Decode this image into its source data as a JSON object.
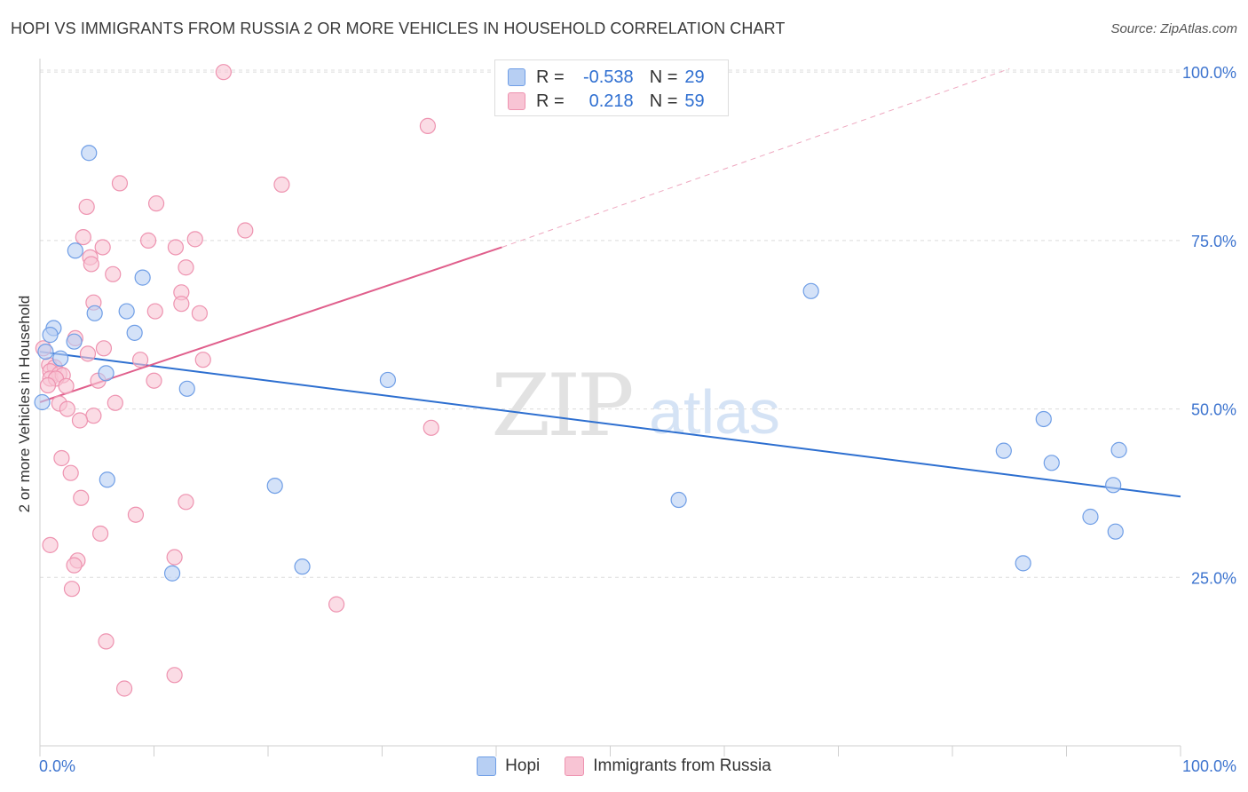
{
  "title": "HOPI VS IMMIGRANTS FROM RUSSIA 2 OR MORE VEHICLES IN HOUSEHOLD CORRELATION CHART",
  "source": "Source: ZipAtlas.com",
  "watermark": {
    "zip": "ZIP",
    "atlas": "atlas"
  },
  "legend_top": {
    "r_label": "R =",
    "n_label": "N =",
    "series": [
      {
        "name": "Hopi",
        "r": "-0.538",
        "n": "29"
      },
      {
        "name": "Immigrants from Russia",
        "r": "0.218",
        "n": "59"
      }
    ]
  },
  "colors": {
    "hopi_fill": "#b7cff3",
    "hopi_stroke": "#6f9ee6",
    "hopi_line": "#2d6fd0",
    "russia_fill": "#f8c4d4",
    "russia_stroke": "#ee93b0",
    "russia_line": "#e05f8c",
    "axis_text": "#3d74cf"
  },
  "chart_data": {
    "type": "scatter",
    "title": "HOPI VS IMMIGRANTS FROM RUSSIA 2 OR MORE VEHICLES IN HOUSEHOLD CORRELATION CHART",
    "xlabel": "",
    "ylabel": "2 or more Vehicles in Household",
    "xlim": [
      0,
      100
    ],
    "ylim": [
      0,
      102
    ],
    "x_tick_labels": [
      "0.0%",
      "100.0%"
    ],
    "y_ticks": [
      25,
      50,
      75,
      100
    ],
    "y_tick_labels": [
      "25.0%",
      "50.0%",
      "75.0%",
      "100.0%"
    ],
    "grid": true,
    "series": [
      {
        "name": "Hopi",
        "r": -0.538,
        "n": 29,
        "trend": {
          "x0": 0,
          "y0": 58.5,
          "x1": 100,
          "y1": 37.0
        },
        "points": [
          [
            4.3,
            88.0
          ],
          [
            3.1,
            73.5
          ],
          [
            9.0,
            69.5
          ],
          [
            1.2,
            62.0
          ],
          [
            0.9,
            61.0
          ],
          [
            7.6,
            64.5
          ],
          [
            4.8,
            64.2
          ],
          [
            8.3,
            61.3
          ],
          [
            3.0,
            60.0
          ],
          [
            1.8,
            57.5
          ],
          [
            0.5,
            58.5
          ],
          [
            5.8,
            55.3
          ],
          [
            0.2,
            51.0
          ],
          [
            12.9,
            53.0
          ],
          [
            30.5,
            54.3
          ],
          [
            5.9,
            39.5
          ],
          [
            20.6,
            38.6
          ],
          [
            11.6,
            25.6
          ],
          [
            23.0,
            26.6
          ],
          [
            67.6,
            67.5
          ],
          [
            88.0,
            48.5
          ],
          [
            84.5,
            43.8
          ],
          [
            88.7,
            42.0
          ],
          [
            94.6,
            43.9
          ],
          [
            94.1,
            38.7
          ],
          [
            92.1,
            34.0
          ],
          [
            94.3,
            31.8
          ],
          [
            56.0,
            36.5
          ],
          [
            86.2,
            27.1
          ]
        ]
      },
      {
        "name": "Immigrants from Russia",
        "r": 0.218,
        "n": 59,
        "trend": {
          "x0": 0,
          "y0": 51.0,
          "x1": 40.5,
          "y1": 74.0
        },
        "trend_extended": {
          "x0": 40.5,
          "y0": 74.0,
          "x1": 85.0,
          "y1": 100.5
        },
        "points": [
          [
            16.1,
            100.0
          ],
          [
            34.0,
            92.0
          ],
          [
            7.0,
            83.5
          ],
          [
            21.2,
            83.3
          ],
          [
            10.2,
            80.5
          ],
          [
            4.1,
            80.0
          ],
          [
            18.0,
            76.5
          ],
          [
            3.8,
            75.5
          ],
          [
            9.5,
            75.0
          ],
          [
            13.6,
            75.2
          ],
          [
            5.5,
            74.0
          ],
          [
            11.9,
            74.0
          ],
          [
            4.4,
            72.5
          ],
          [
            4.5,
            71.5
          ],
          [
            12.8,
            71.0
          ],
          [
            6.4,
            70.0
          ],
          [
            12.4,
            67.3
          ],
          [
            4.7,
            65.8
          ],
          [
            12.4,
            65.6
          ],
          [
            10.1,
            64.5
          ],
          [
            14.0,
            64.2
          ],
          [
            3.1,
            60.5
          ],
          [
            5.6,
            59.0
          ],
          [
            4.2,
            58.2
          ],
          [
            0.3,
            59.0
          ],
          [
            14.3,
            57.3
          ],
          [
            8.8,
            57.3
          ],
          [
            0.8,
            56.5
          ],
          [
            1.3,
            56.2
          ],
          [
            0.9,
            55.6
          ],
          [
            1.7,
            55.2
          ],
          [
            0.9,
            54.5
          ],
          [
            2.0,
            55.0
          ],
          [
            1.4,
            54.5
          ],
          [
            0.7,
            53.5
          ],
          [
            2.3,
            53.4
          ],
          [
            5.1,
            54.2
          ],
          [
            10.0,
            54.2
          ],
          [
            1.7,
            50.8
          ],
          [
            6.6,
            50.9
          ],
          [
            2.4,
            50.0
          ],
          [
            4.7,
            49.0
          ],
          [
            3.5,
            48.3
          ],
          [
            34.3,
            47.2
          ],
          [
            1.9,
            42.7
          ],
          [
            2.7,
            40.5
          ],
          [
            3.6,
            36.8
          ],
          [
            12.8,
            36.2
          ],
          [
            8.4,
            34.3
          ],
          [
            5.3,
            31.5
          ],
          [
            0.9,
            29.8
          ],
          [
            11.8,
            28.0
          ],
          [
            3.3,
            27.5
          ],
          [
            3.0,
            26.8
          ],
          [
            2.8,
            23.3
          ],
          [
            26.0,
            21.0
          ],
          [
            5.8,
            15.5
          ],
          [
            11.8,
            10.5
          ],
          [
            7.4,
            8.5
          ]
        ]
      }
    ]
  }
}
